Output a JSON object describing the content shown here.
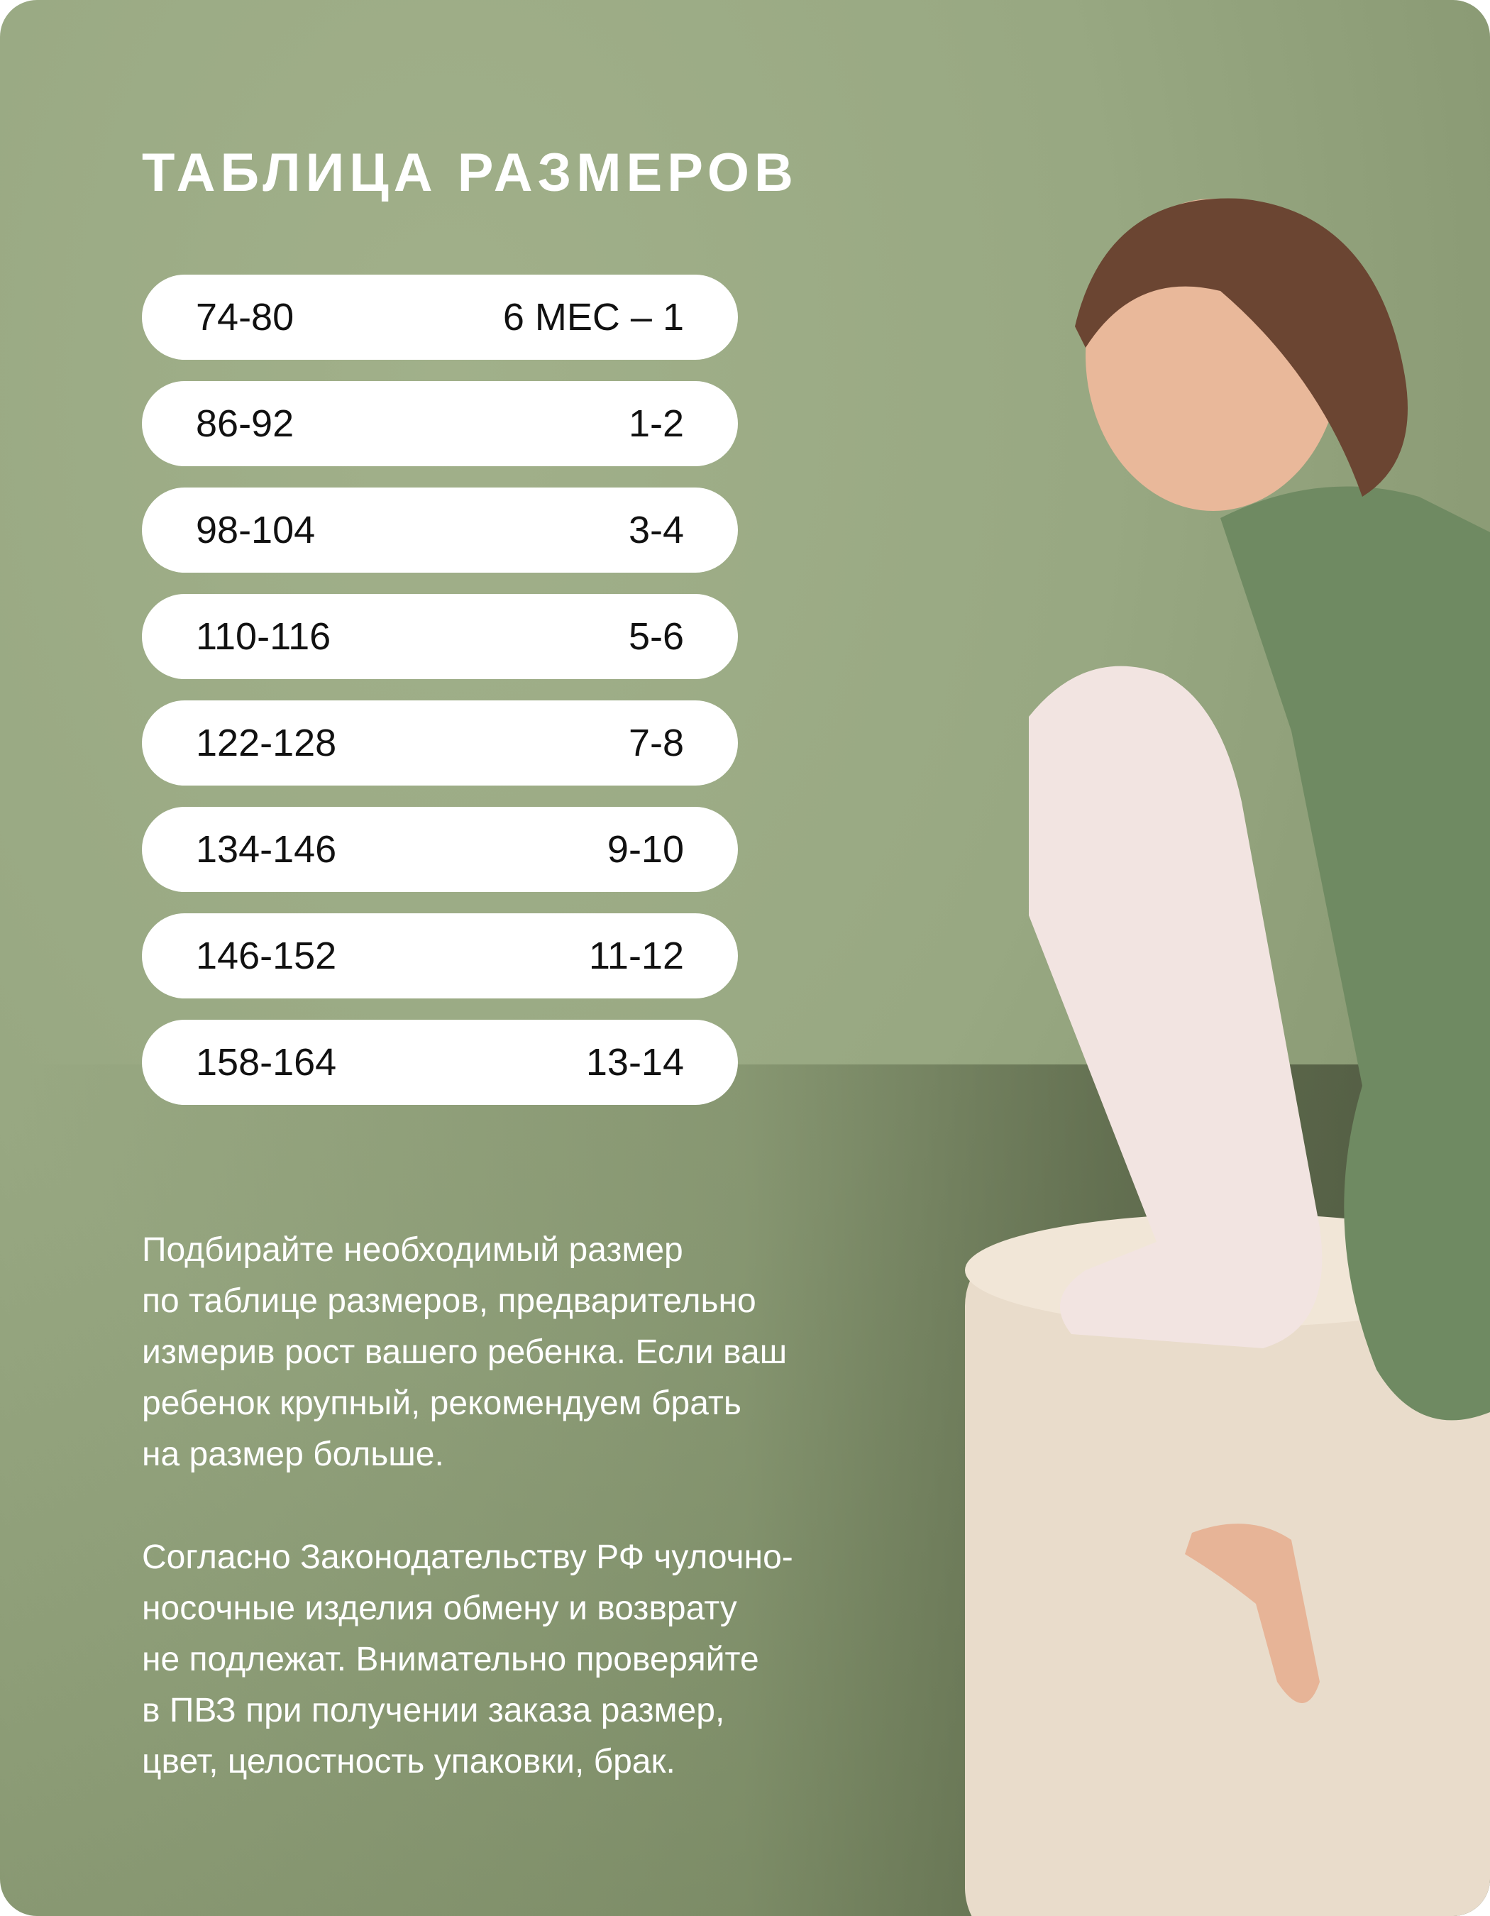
{
  "title": "ТАБЛИЦА РАЗМЕРОВ",
  "size_table": [
    {
      "height": "74-80",
      "age": "6 МЕС – 1"
    },
    {
      "height": "86-92",
      "age": "1-2"
    },
    {
      "height": "98-104",
      "age": "3-4"
    },
    {
      "height": "110-116",
      "age": "5-6"
    },
    {
      "height": "122-128",
      "age": "7-8"
    },
    {
      "height": "134-146",
      "age": "9-10"
    },
    {
      "height": "146-152",
      "age": "11-12"
    },
    {
      "height": "158-164",
      "age": "13-14"
    }
  ],
  "paragraph1": [
    "Подбирайте необходимый размер",
    "по таблице размеров, предварительно",
    "измерив рост вашего ребенка. Если ваш",
    "ребенок крупный, рекомендуем брать",
    "на размер больше."
  ],
  "paragraph2": [
    "Согласно Законодательству РФ чулочно-",
    "носочные изделия обмену и возврату",
    "не подлежат. Внимательно проверяйте",
    "в ПВЗ при получении заказа размер,",
    "цвет, целостность упаковки, брак."
  ],
  "colors": {
    "background": "#98a882",
    "pill": "#ffffff",
    "text_light": "#ffffff",
    "text_dark": "#111111"
  }
}
